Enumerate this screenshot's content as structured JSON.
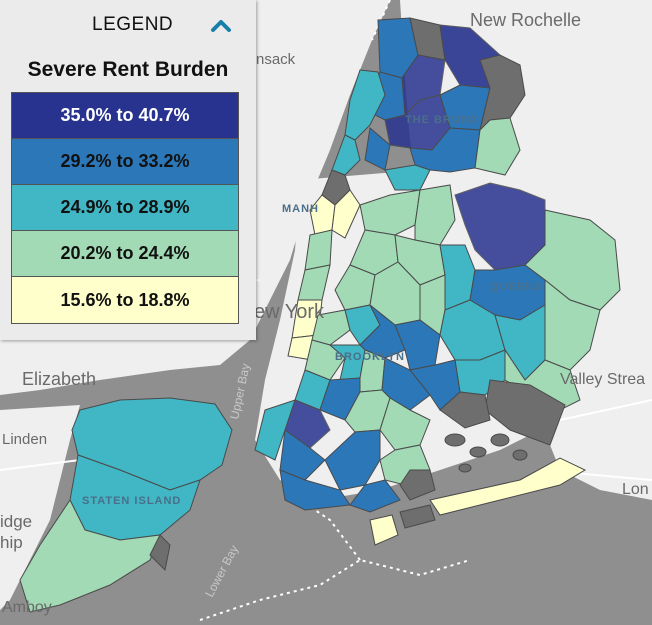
{
  "legend": {
    "header_label": "LEGEND",
    "title": "Severe Rent Burden",
    "collapse_icon": "chevron-up-icon",
    "bins": [
      {
        "label": "35.0% to 40.7%",
        "color": "#27338f",
        "text_color": "#ffffff"
      },
      {
        "label": "29.2% to 33.2%",
        "color": "#2c77b8",
        "text_color": "#111111"
      },
      {
        "label": "24.9% to 28.9%",
        "color": "#41b6c4",
        "text_color": "#111111"
      },
      {
        "label": "20.2% to 24.4%",
        "color": "#a1dab4",
        "text_color": "#111111"
      },
      {
        "label": "15.6% to 18.8%",
        "color": "#ffffcc",
        "text_color": "#111111"
      }
    ],
    "no_data_color": "#6e6e6e"
  },
  "map": {
    "places": [
      {
        "id": "new-rochelle",
        "label": "New Rochelle"
      },
      {
        "id": "hackensack",
        "label": "nsack"
      },
      {
        "id": "manhattan",
        "label": "MANH"
      },
      {
        "id": "new-york",
        "label": "ew York"
      },
      {
        "id": "elizabeth",
        "label": "Elizabeth"
      },
      {
        "id": "linden",
        "label": "Linden"
      },
      {
        "id": "bridge",
        "label": "idge"
      },
      {
        "id": "ship",
        "label": "hip"
      },
      {
        "id": "amboy",
        "label": "Amboy"
      },
      {
        "id": "valley-stream",
        "label": "Valley Strea"
      },
      {
        "id": "long-beach",
        "label": "Lon"
      }
    ],
    "boroughs": [
      {
        "id": "the-bronx",
        "label": "THE BRONX"
      },
      {
        "id": "queens",
        "label": "QUEENS"
      },
      {
        "id": "brooklyn",
        "label": "BROOKLYN"
      },
      {
        "id": "staten-island",
        "label": "STATEN ISLAND"
      }
    ],
    "water": [
      {
        "id": "upper-bay",
        "label": "Upper Bay"
      },
      {
        "id": "lower-bay",
        "label": "Lower Bay"
      }
    ]
  }
}
